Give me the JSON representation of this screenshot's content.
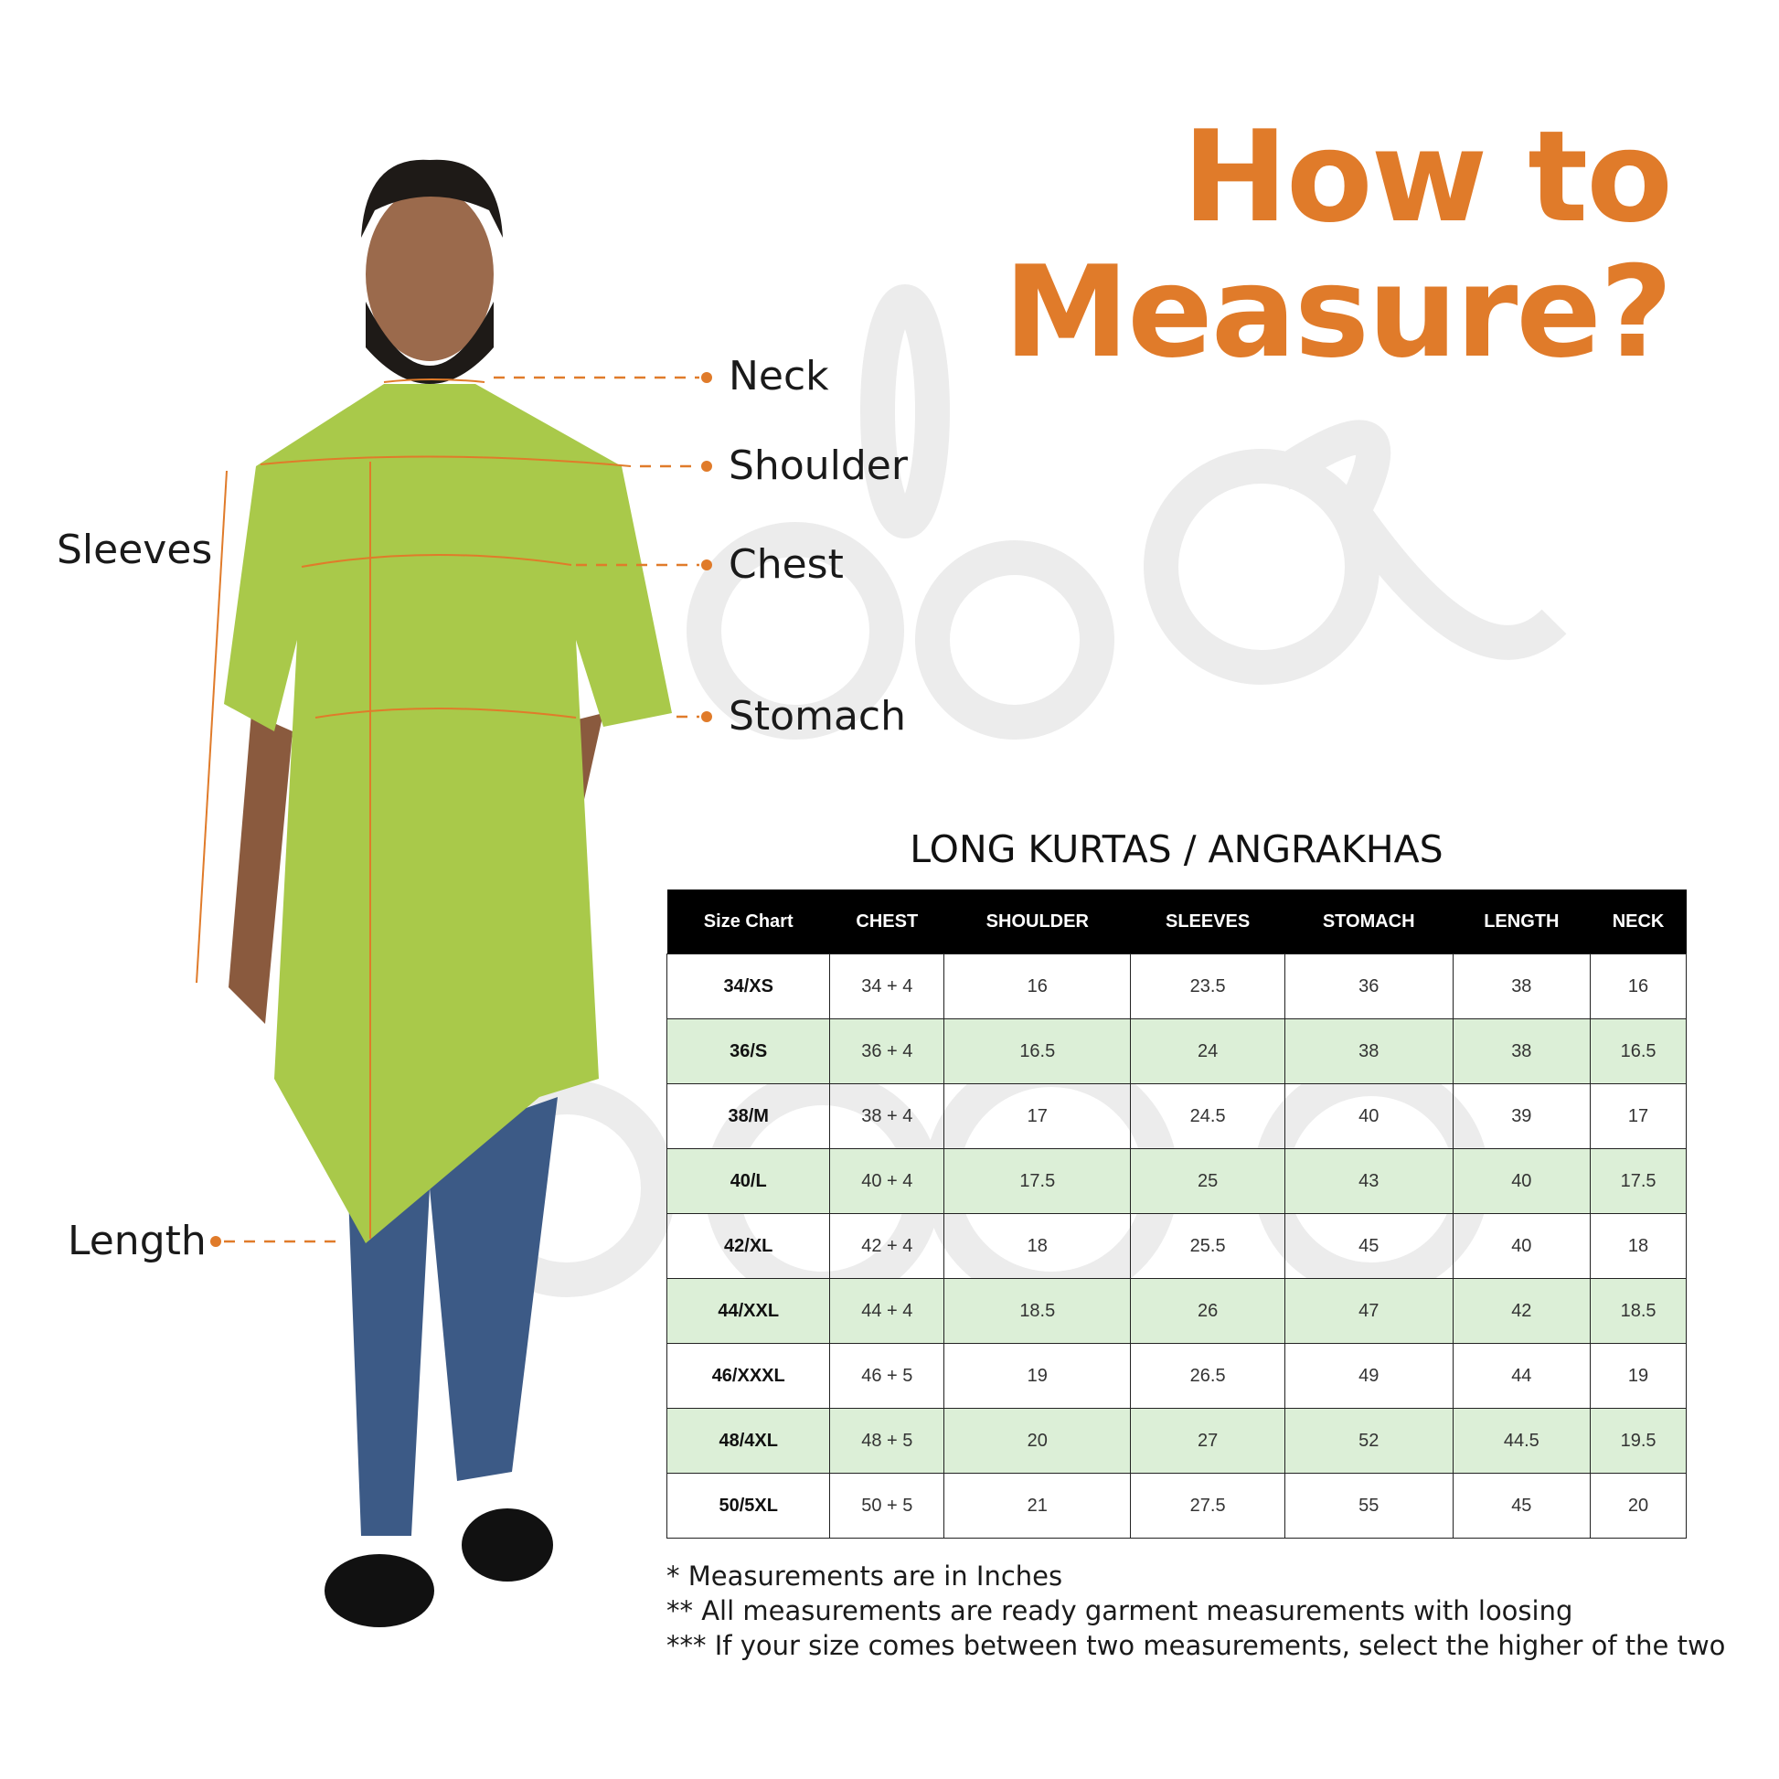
{
  "title": {
    "line1": "How to",
    "line2": "Measure?"
  },
  "colors": {
    "accent": "#e07b2a",
    "kurta": "#a9c94a",
    "alt_row": "#dcefd7",
    "header": "#000000"
  },
  "labels": {
    "neck": "Neck",
    "shoulder": "Shoulder",
    "chest": "Chest",
    "stomach": "Stomach",
    "sleeves": "Sleeves",
    "length": "Length"
  },
  "table": {
    "title": "LONG KURTAS / ANGRAKHAS",
    "headers": [
      "Size Chart",
      "CHEST",
      "SHOULDER",
      "SLEEVES",
      "STOMACH",
      "LENGTH",
      "NECK"
    ],
    "rows": [
      [
        "34/XS",
        "34 + 4",
        "16",
        "23.5",
        "36",
        "38",
        "16"
      ],
      [
        "36/S",
        "36 + 4",
        "16.5",
        "24",
        "38",
        "38",
        "16.5"
      ],
      [
        "38/M",
        "38 + 4",
        "17",
        "24.5",
        "40",
        "39",
        "17"
      ],
      [
        "40/L",
        "40 + 4",
        "17.5",
        "25",
        "43",
        "40",
        "17.5"
      ],
      [
        "42/XL",
        "42 + 4",
        "18",
        "25.5",
        "45",
        "40",
        "18"
      ],
      [
        "44/XXL",
        "44 + 4",
        "18.5",
        "26",
        "47",
        "42",
        "18.5"
      ],
      [
        "46/XXXL",
        "46 + 5",
        "19",
        "26.5",
        "49",
        "44",
        "19"
      ],
      [
        "48/4XL",
        "48 + 5",
        "20",
        "27",
        "52",
        "44.5",
        "19.5"
      ],
      [
        "50/5XL",
        "50 + 5",
        "21",
        "27.5",
        "55",
        "45",
        "20"
      ]
    ]
  },
  "notes": [
    "* Measurements are in Inches",
    "** All measurements are ready garment measurements with loosing",
    "*** If your size comes between two measurements, select the higher of the two"
  ]
}
